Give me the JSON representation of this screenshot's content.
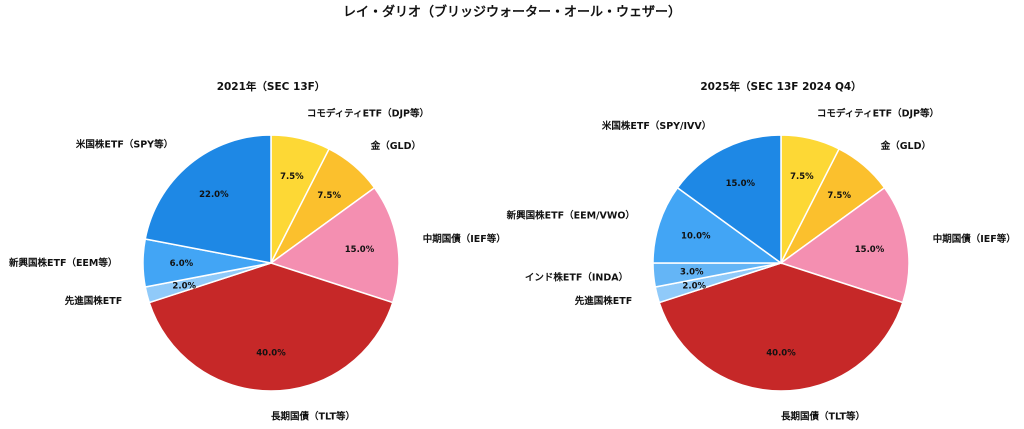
{
  "chart_data": {
    "type": "pie",
    "title": "レイ・ダリオ（ブリッジウォーター・オール・ウェザー）",
    "charts": [
      {
        "title": "2021年（SEC 13F）",
        "labels": [
          "コモディティETF（DJP等）",
          "金（GLD）",
          "中期国債（IEF等）",
          "長期国債（TLT等）",
          "先進国株ETF",
          "新興国株ETF（EEM等）",
          "米国株ETF（SPY等）"
        ],
        "values": [
          7.5,
          7.5,
          15.0,
          40.0,
          2.0,
          6.0,
          22.0
        ],
        "pct_labels": [
          "7.5%",
          "7.5%",
          "15.0%",
          "40.0%",
          "2.0%",
          "6.0%",
          "22.0%"
        ],
        "colors": [
          "#FDD835",
          "#FBC02D",
          "#F48FB1",
          "#C62828",
          "#90CAF9",
          "#42A5F5",
          "#1E88E5"
        ]
      },
      {
        "title": "2025年（SEC 13F 2024 Q4）",
        "labels": [
          "コモディティETF（DJP等）",
          "金（GLD）",
          "中期国債（IEF等）",
          "長期国債（TLT等）",
          "先進国株ETF",
          "インド株ETF（INDA）",
          "新興国株ETF（EEM/VWO）",
          "米国株ETF（SPY/IVV）"
        ],
        "values": [
          7.5,
          7.5,
          15.0,
          40.0,
          2.0,
          3.0,
          10.0,
          15.0
        ],
        "pct_labels": [
          "7.5%",
          "7.5%",
          "15.0%",
          "40.0%",
          "2.0%",
          "3.0%",
          "10.0%",
          "15.0%"
        ],
        "colors": [
          "#FDD835",
          "#FBC02D",
          "#F48FB1",
          "#C62828",
          "#90CAF9",
          "#64B5F6",
          "#42A5F5",
          "#1E88E5"
        ]
      }
    ],
    "start_angle": 90,
    "direction": "clockwise"
  }
}
